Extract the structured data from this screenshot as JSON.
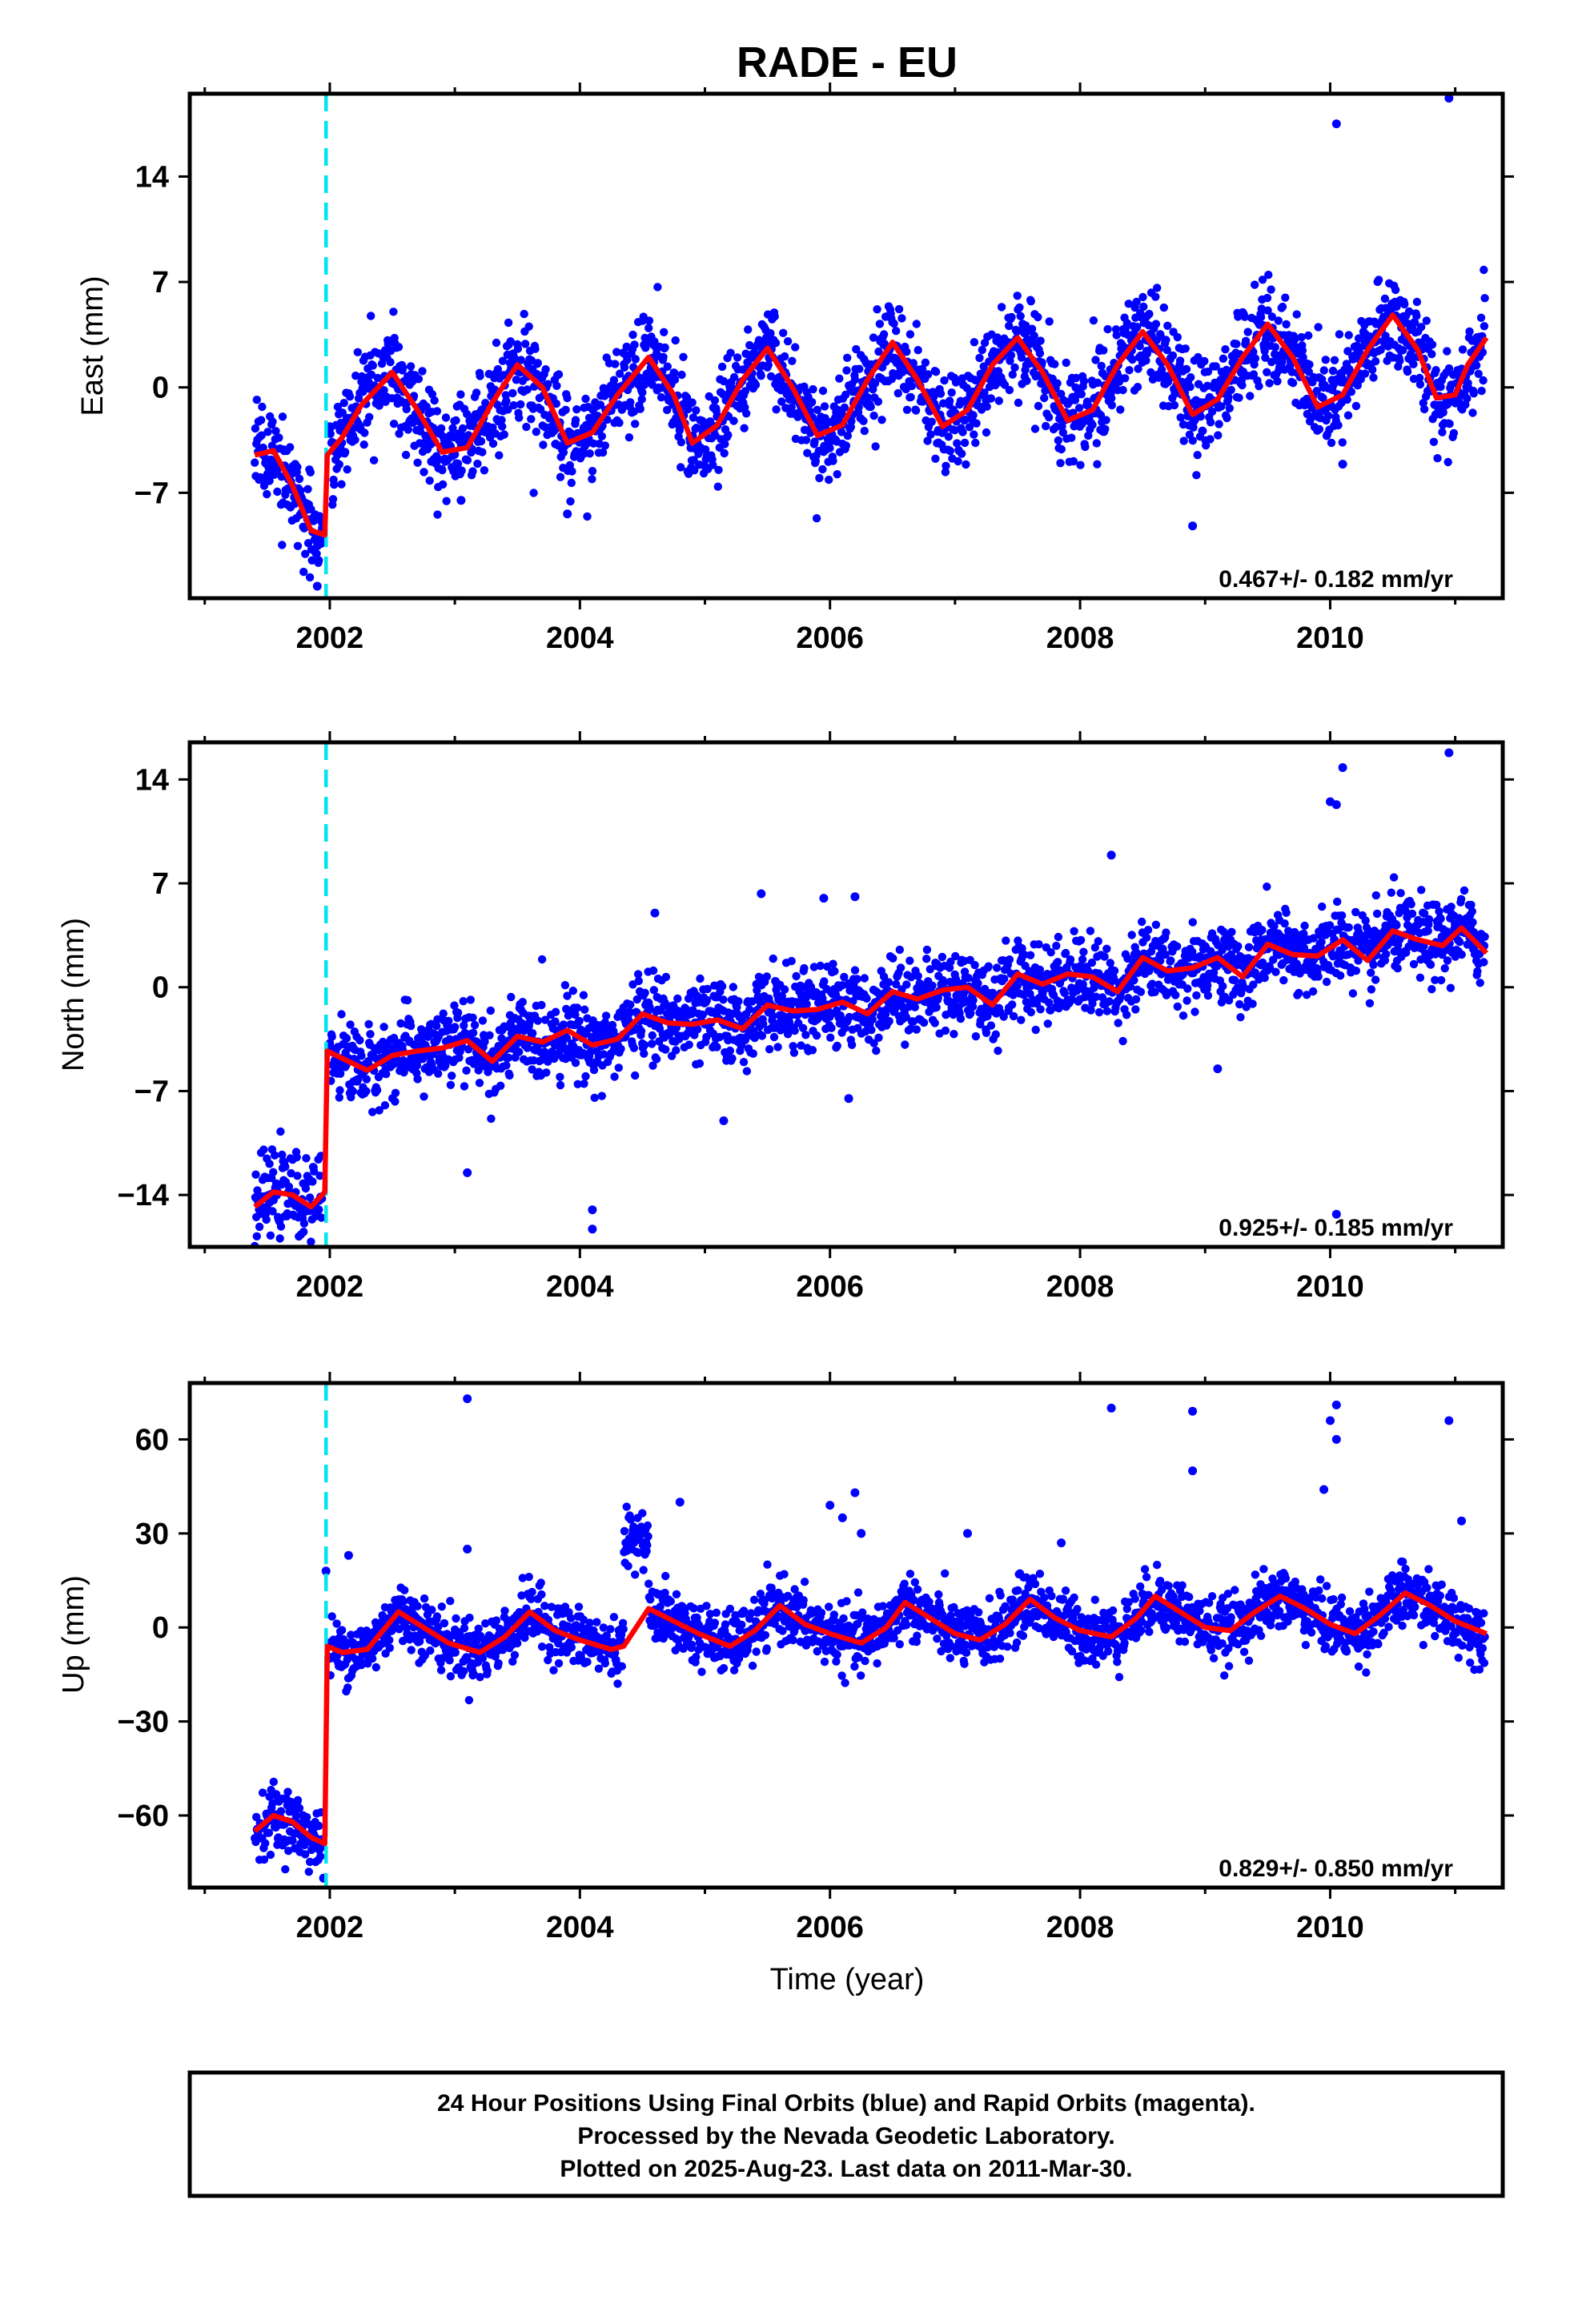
{
  "chart_data": {
    "type": "scatter",
    "title": "RADE - EU",
    "xlabel": "Time (year)",
    "x_ticks": [
      "2002",
      "2004",
      "2006",
      "2008",
      "2010"
    ],
    "step_epoch": 2001.97,
    "colors": {
      "points": "#0000ff",
      "model": "#ff0000",
      "step_line": "#00e5ee",
      "frame": "#000000"
    },
    "panels": [
      {
        "ylabel": "East (mm)",
        "y_ticks": [
          "14",
          "7",
          "0",
          "-7"
        ],
        "ylim": [
          -14,
          19.5
        ],
        "rate_text": "0.467+/- 0.182 mm/yr",
        "model_points": [
          [
            2001.4,
            -4.5
          ],
          [
            2001.55,
            -4.2
          ],
          [
            2001.7,
            -6.5
          ],
          [
            2001.85,
            -9.5
          ],
          [
            2001.96,
            -9.8
          ],
          [
            2001.98,
            -4.5
          ],
          [
            2002.1,
            -3.3
          ],
          [
            2002.25,
            -1.2
          ],
          [
            2002.5,
            1.0
          ],
          [
            2002.7,
            -1.5
          ],
          [
            2002.9,
            -4.3
          ],
          [
            2003.1,
            -4.0
          ],
          [
            2003.3,
            -1.0
          ],
          [
            2003.5,
            1.5
          ],
          [
            2003.7,
            0.0
          ],
          [
            2003.9,
            -3.7
          ],
          [
            2004.1,
            -3.0
          ],
          [
            2004.3,
            -0.5
          ],
          [
            2004.55,
            2.0
          ],
          [
            2004.75,
            -0.5
          ],
          [
            2004.9,
            -3.7
          ],
          [
            2005.1,
            -2.5
          ],
          [
            2005.3,
            0.5
          ],
          [
            2005.5,
            2.6
          ],
          [
            2005.7,
            0.0
          ],
          [
            2005.9,
            -3.2
          ],
          [
            2006.1,
            -2.5
          ],
          [
            2006.3,
            0.5
          ],
          [
            2006.5,
            3.0
          ],
          [
            2006.7,
            0.5
          ],
          [
            2006.9,
            -2.6
          ],
          [
            2007.1,
            -1.5
          ],
          [
            2007.3,
            1.5
          ],
          [
            2007.5,
            3.3
          ],
          [
            2007.7,
            1.0
          ],
          [
            2007.9,
            -2.2
          ],
          [
            2008.1,
            -1.5
          ],
          [
            2008.3,
            1.5
          ],
          [
            2008.5,
            3.7
          ],
          [
            2008.7,
            1.5
          ],
          [
            2008.9,
            -1.8
          ],
          [
            2009.1,
            -0.8
          ],
          [
            2009.3,
            2.0
          ],
          [
            2009.5,
            4.2
          ],
          [
            2009.7,
            2.0
          ],
          [
            2009.9,
            -1.3
          ],
          [
            2010.1,
            -0.5
          ],
          [
            2010.3,
            2.5
          ],
          [
            2010.5,
            4.8
          ],
          [
            2010.7,
            2.5
          ],
          [
            2010.85,
            -0.7
          ],
          [
            2011.0,
            -0.5
          ],
          [
            2011.1,
            1.5
          ],
          [
            2011.25,
            3.3
          ]
        ],
        "outliers": [
          [
            2010.05,
            17.5
          ],
          [
            2010.95,
            19.2
          ],
          [
            2008.9,
            -9.2
          ],
          [
            2010.1,
            -5.1
          ],
          [
            2001.9,
            -13.2
          ],
          [
            2003.05,
            -7.5
          ],
          [
            2003.9,
            -8.4
          ]
        ]
      },
      {
        "ylabel": "North (mm)",
        "y_ticks": [
          "14",
          "7",
          "0",
          "-7",
          "-14"
        ],
        "ylim": [
          -17.5,
          16.5
        ],
        "rate_text": "0.925+/- 0.185 mm/yr",
        "model_points": [
          [
            2001.4,
            -14.8
          ],
          [
            2001.55,
            -13.8
          ],
          [
            2001.7,
            -14.0
          ],
          [
            2001.85,
            -14.8
          ],
          [
            2001.96,
            -13.8
          ],
          [
            2001.98,
            -4.3
          ],
          [
            2002.1,
            -4.8
          ],
          [
            2002.3,
            -5.6
          ],
          [
            2002.5,
            -4.6
          ],
          [
            2002.7,
            -4.3
          ],
          [
            2002.9,
            -4.1
          ],
          [
            2003.1,
            -3.6
          ],
          [
            2003.3,
            -5.0
          ],
          [
            2003.5,
            -3.3
          ],
          [
            2003.7,
            -3.7
          ],
          [
            2003.9,
            -2.9
          ],
          [
            2004.1,
            -3.9
          ],
          [
            2004.3,
            -3.5
          ],
          [
            2004.5,
            -1.8
          ],
          [
            2004.7,
            -2.4
          ],
          [
            2004.9,
            -2.5
          ],
          [
            2005.1,
            -2.2
          ],
          [
            2005.3,
            -2.8
          ],
          [
            2005.5,
            -1.2
          ],
          [
            2005.7,
            -1.6
          ],
          [
            2005.9,
            -1.5
          ],
          [
            2006.1,
            -1.0
          ],
          [
            2006.3,
            -1.8
          ],
          [
            2006.5,
            -0.3
          ],
          [
            2006.7,
            -0.8
          ],
          [
            2006.9,
            -0.2
          ],
          [
            2007.1,
            0.0
          ],
          [
            2007.3,
            -1.2
          ],
          [
            2007.5,
            0.9
          ],
          [
            2007.7,
            0.2
          ],
          [
            2007.9,
            0.9
          ],
          [
            2008.1,
            0.7
          ],
          [
            2008.3,
            -0.3
          ],
          [
            2008.5,
            2.0
          ],
          [
            2008.7,
            1.1
          ],
          [
            2008.9,
            1.3
          ],
          [
            2009.1,
            2.0
          ],
          [
            2009.3,
            0.7
          ],
          [
            2009.5,
            2.9
          ],
          [
            2009.7,
            2.2
          ],
          [
            2009.9,
            2.1
          ],
          [
            2010.1,
            3.2
          ],
          [
            2010.3,
            1.8
          ],
          [
            2010.5,
            3.8
          ],
          [
            2010.7,
            3.2
          ],
          [
            2010.9,
            2.8
          ],
          [
            2011.05,
            4.0
          ],
          [
            2011.25,
            2.3
          ]
        ],
        "outliers": [
          [
            2010.1,
            14.8
          ],
          [
            2010.95,
            15.8
          ],
          [
            2010.0,
            12.5
          ],
          [
            2010.05,
            12.3
          ],
          [
            2008.25,
            8.9
          ],
          [
            2004.1,
            -15.0
          ],
          [
            2004.1,
            -16.3
          ],
          [
            2009.1,
            -5.5
          ],
          [
            2010.05,
            -15.3
          ],
          [
            2005.15,
            -9.0
          ],
          [
            2003.1,
            -12.5
          ],
          [
            2006.15,
            -7.5
          ],
          [
            2004.6,
            5.0
          ],
          [
            2005.45,
            6.3
          ],
          [
            2005.95,
            6.0
          ],
          [
            2006.2,
            6.1
          ]
        ]
      },
      {
        "ylabel": "Up (mm)",
        "y_ticks": [
          "60",
          "30",
          "0",
          "-30",
          "-60"
        ],
        "ylim": [
          -83,
          78
        ],
        "rate_text": "0.829+/- 0.850 mm/yr",
        "model_points": [
          [
            2001.4,
            -65
          ],
          [
            2001.55,
            -60
          ],
          [
            2001.7,
            -62
          ],
          [
            2001.85,
            -67
          ],
          [
            2001.96,
            -69
          ],
          [
            2001.98,
            -6
          ],
          [
            2002.1,
            -8
          ],
          [
            2002.3,
            -7
          ],
          [
            2002.55,
            5
          ],
          [
            2002.75,
            0
          ],
          [
            2002.95,
            -5
          ],
          [
            2003.2,
            -8
          ],
          [
            2003.4,
            -3
          ],
          [
            2003.6,
            5
          ],
          [
            2003.8,
            -1
          ],
          [
            2004.0,
            -4
          ],
          [
            2004.25,
            -7
          ],
          [
            2004.35,
            -6
          ],
          [
            2004.55,
            6
          ],
          [
            2004.75,
            2
          ],
          [
            2004.95,
            -2
          ],
          [
            2005.2,
            -6
          ],
          [
            2005.4,
            -1
          ],
          [
            2005.6,
            7
          ],
          [
            2005.8,
            1
          ],
          [
            2006.0,
            -2
          ],
          [
            2006.25,
            -5
          ],
          [
            2006.45,
            0
          ],
          [
            2006.6,
            8
          ],
          [
            2006.8,
            3
          ],
          [
            2007.0,
            -2
          ],
          [
            2007.2,
            -4
          ],
          [
            2007.4,
            1
          ],
          [
            2007.6,
            9
          ],
          [
            2007.8,
            3
          ],
          [
            2008.0,
            -1
          ],
          [
            2008.25,
            -3
          ],
          [
            2008.45,
            3
          ],
          [
            2008.6,
            10
          ],
          [
            2008.8,
            5
          ],
          [
            2009.0,
            0
          ],
          [
            2009.2,
            -1
          ],
          [
            2009.4,
            5
          ],
          [
            2009.6,
            10
          ],
          [
            2009.8,
            6
          ],
          [
            2010.0,
            1
          ],
          [
            2010.2,
            -2
          ],
          [
            2010.4,
            4
          ],
          [
            2010.6,
            11
          ],
          [
            2010.8,
            7
          ],
          [
            2011.0,
            2
          ],
          [
            2011.25,
            -2
          ]
        ],
        "outliers": [
          [
            2003.1,
            73
          ],
          [
            2008.25,
            70
          ],
          [
            2008.9,
            69
          ],
          [
            2010.05,
            71
          ],
          [
            2010.0,
            66
          ],
          [
            2010.95,
            66
          ],
          [
            2010.05,
            60
          ],
          [
            2008.9,
            50
          ],
          [
            2009.95,
            44
          ],
          [
            2006.2,
            43
          ],
          [
            2006.0,
            39
          ],
          [
            2004.8,
            40
          ],
          [
            2006.1,
            35
          ],
          [
            2011.05,
            34
          ],
          [
            2003.1,
            25
          ],
          [
            2002.15,
            23
          ],
          [
            2001.97,
            18
          ],
          [
            2001.95,
            -80
          ],
          [
            2007.1,
            30
          ],
          [
            2007.85,
            27
          ],
          [
            2006.25,
            30
          ]
        ]
      }
    ],
    "footer_lines": [
      "24 Hour Positions Using Final Orbits (blue) and Rapid Orbits (magenta).",
      "Processed by the Nevada Geodetic Laboratory.",
      "Plotted on 2025-Aug-23. Last data on 2011-Mar-30."
    ]
  }
}
